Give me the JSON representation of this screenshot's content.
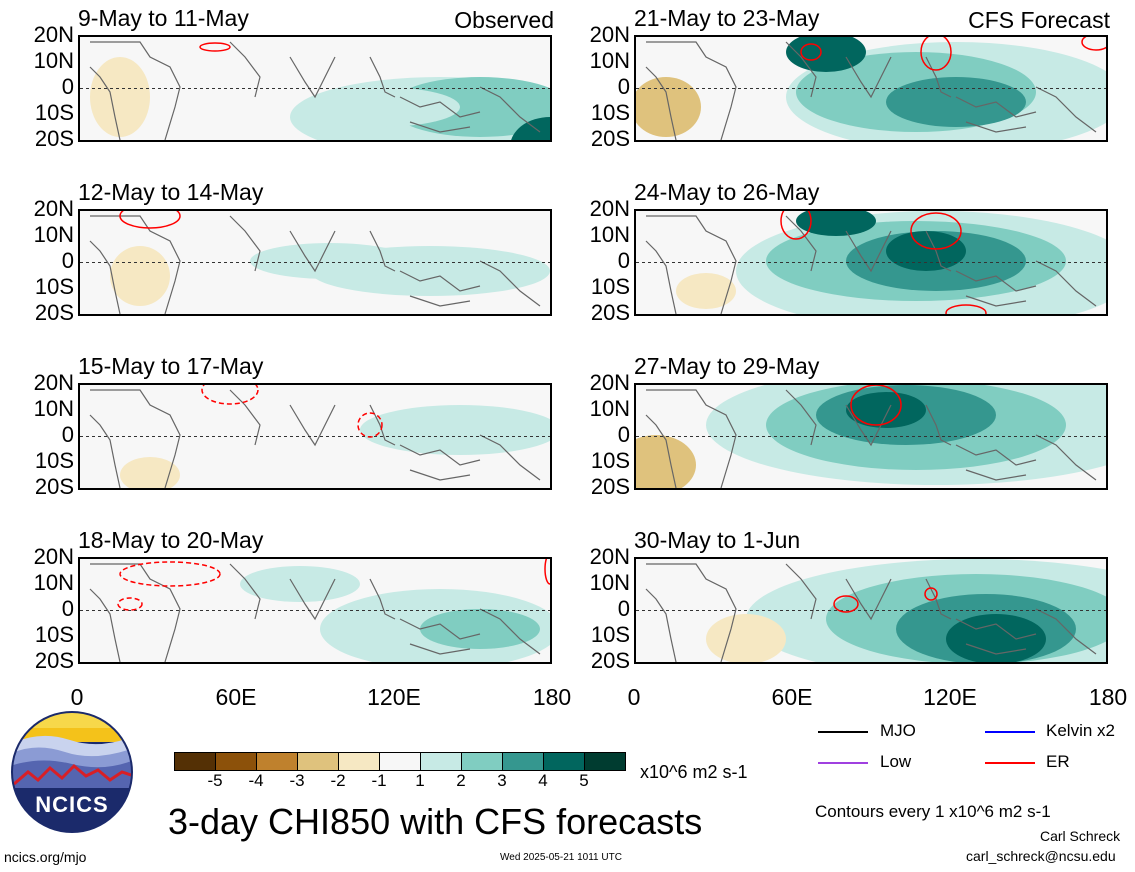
{
  "panels": [
    {
      "title": "9-May to 11-May",
      "tag": "Observed"
    },
    {
      "title": "12-May to 14-May",
      "tag": ""
    },
    {
      "title": "15-May to 17-May",
      "tag": ""
    },
    {
      "title": "18-May to 20-May",
      "tag": ""
    },
    {
      "title": "21-May to 23-May",
      "tag": "CFS Forecast"
    },
    {
      "title": "24-May to 26-May",
      "tag": ""
    },
    {
      "title": "27-May to 29-May",
      "tag": ""
    },
    {
      "title": "30-May to 1-Jun",
      "tag": ""
    }
  ],
  "lat_labels": [
    "20N",
    "10N",
    "0",
    "10S",
    "20S"
  ],
  "lon_labels": [
    "0",
    "60E",
    "120E",
    "180"
  ],
  "colorbar": {
    "ticks": [
      "-5",
      "-4",
      "-3",
      "-2",
      "-1",
      "1",
      "2",
      "3",
      "4",
      "5"
    ],
    "colors": [
      "#543005",
      "#8c510a",
      "#bf812d",
      "#dfc27d",
      "#f6e8c3",
      "#f7f7f7",
      "#c7eae5",
      "#80cdc1",
      "#35978f",
      "#01665e",
      "#003c30"
    ],
    "unit": "x10^6 m2 s-1"
  },
  "title": "3-day CHI850 with CFS forecasts",
  "legend": [
    {
      "label": "MJO",
      "color": "#000000"
    },
    {
      "label": "Kelvin x2",
      "color": "#0000ff"
    },
    {
      "label": "Low",
      "color": "#a040e0"
    },
    {
      "label": "ER",
      "color": "#ff0000"
    }
  ],
  "contour_note": "Contours every 1 x10^6 m2 s-1",
  "author": "Carl Schreck",
  "email": "carl_schreck@ncsu.edu",
  "site": "ncics.org/mjo",
  "timestamp": "Wed 2025-05-21 1011 UTC",
  "logo_text": "NCICS"
}
